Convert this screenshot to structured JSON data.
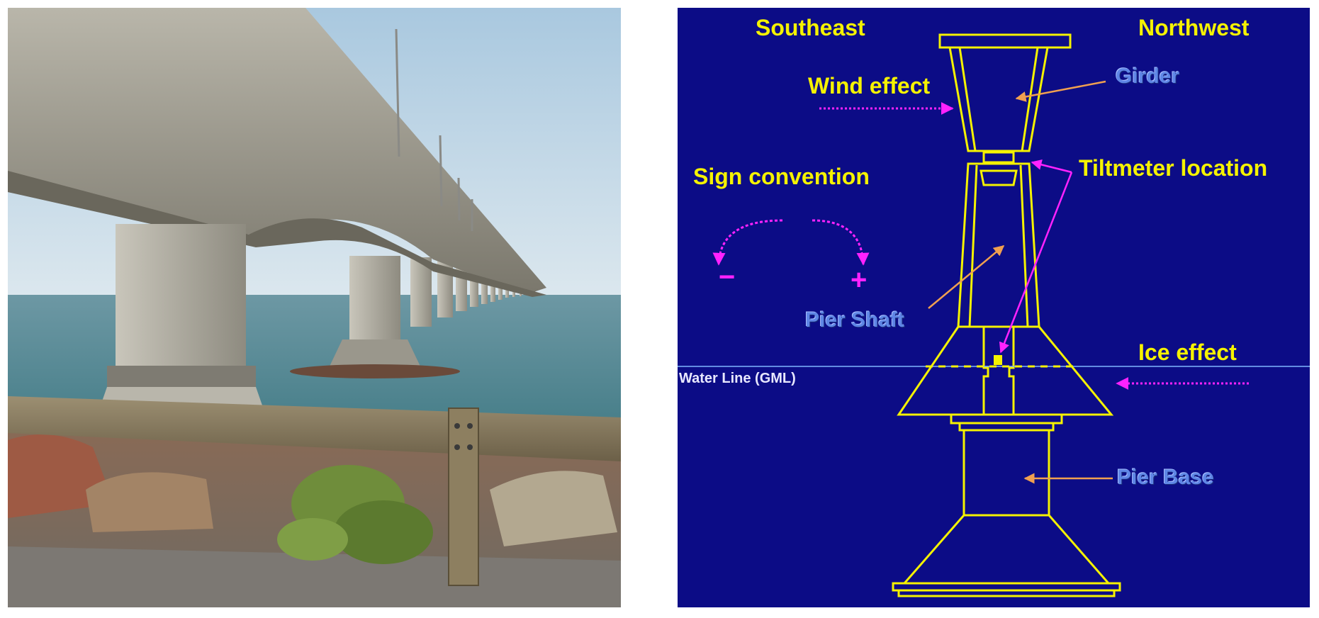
{
  "photo": {
    "subject": "bridge-photo"
  },
  "diagram": {
    "labels": {
      "southeast": "Southeast",
      "northwest": "Northwest",
      "wind_effect": "Wind effect",
      "girder": "Girder",
      "tiltmeter_location": "Tiltmeter location",
      "sign_convention": "Sign convention",
      "pier_shaft": "Pier Shaft",
      "ice_effect": "Ice effect",
      "water_line": "Water Line (GML)",
      "pier_base": "Pier Base",
      "minus": "−",
      "plus": "+"
    },
    "colors": {
      "background": "#0c0c86",
      "outline": "#f5f200",
      "effect_arrow": "#ff22ff",
      "pointer_arrow": "#f0a050",
      "component_label": "#5f86e6"
    }
  }
}
